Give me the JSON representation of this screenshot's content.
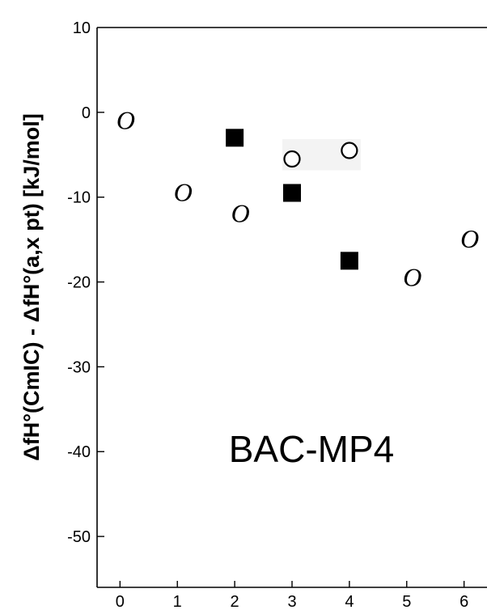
{
  "chart_data": {
    "type": "scatter",
    "title": "",
    "xlabel": "",
    "ylabel": "ΔfH°(CmIC) - ΔfH°(a,x pt) [kJ/mol]",
    "xlim": [
      -0.4,
      6.4
    ],
    "ylim": [
      -56,
      10
    ],
    "x_ticks": [
      0,
      1,
      2,
      3,
      4,
      5,
      6
    ],
    "y_ticks": [
      10,
      0,
      -10,
      -20,
      -30,
      -40,
      -50
    ],
    "grid": false,
    "annotation": "BAC-MP4",
    "series": [
      {
        "marker": "italic-o",
        "points": [
          {
            "x": 0.1,
            "y": -1
          },
          {
            "x": 1.1,
            "y": -9.5
          },
          {
            "x": 2.1,
            "y": -12
          },
          {
            "x": 5.1,
            "y": -19.5
          },
          {
            "x": 6.1,
            "y": -15
          }
        ]
      },
      {
        "marker": "filled-square",
        "points": [
          {
            "x": 2,
            "y": -3
          },
          {
            "x": 3,
            "y": -9.5
          },
          {
            "x": 4,
            "y": -17.5
          }
        ]
      },
      {
        "marker": "open-circle",
        "points": [
          {
            "x": 3,
            "y": -5.5
          },
          {
            "x": 4,
            "y": -4.5
          }
        ]
      }
    ]
  }
}
